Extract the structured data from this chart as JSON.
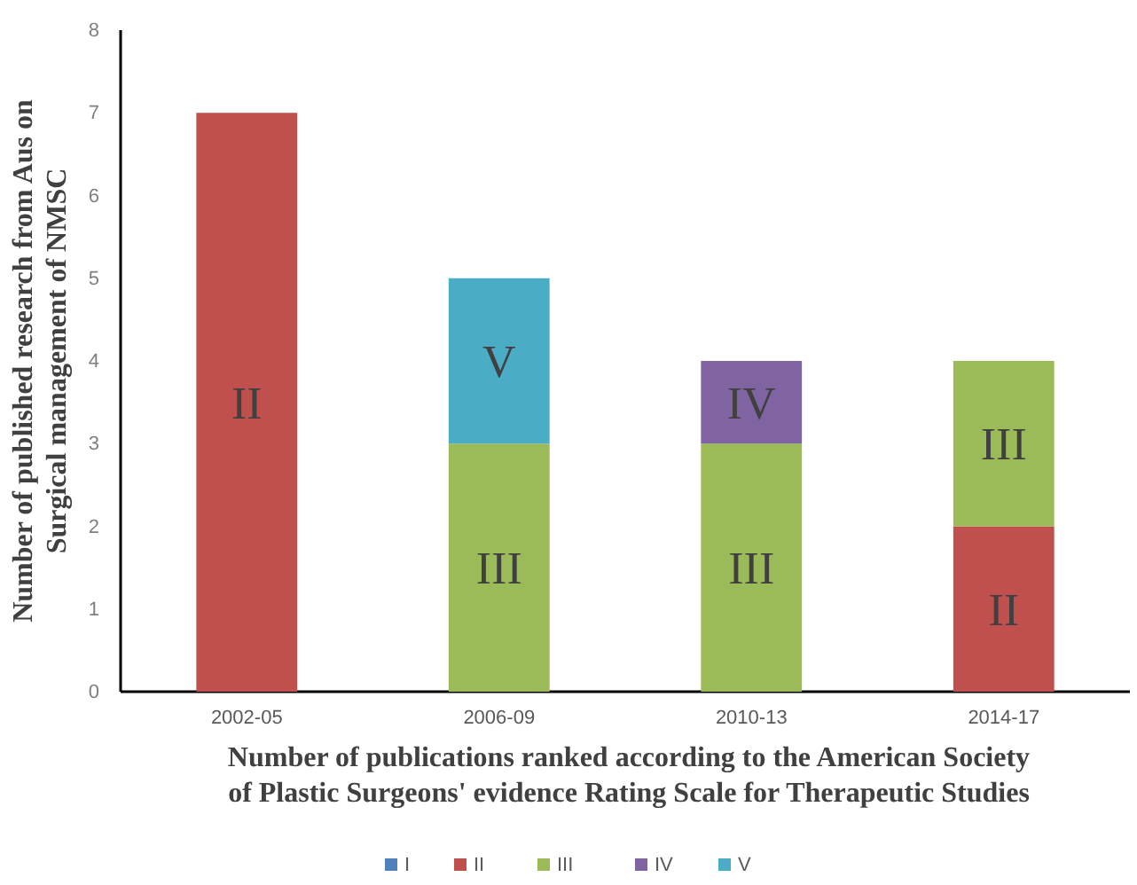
{
  "chart_data": {
    "type": "bar",
    "stacked": true,
    "categories": [
      "2002-05",
      "2006-09",
      "2010-13",
      "2014-17"
    ],
    "series": [
      {
        "name": "I",
        "color": "#4f81bd",
        "values": [
          0,
          0,
          0,
          0
        ]
      },
      {
        "name": "II",
        "color": "#c0504d",
        "values": [
          7,
          0,
          0,
          2
        ]
      },
      {
        "name": "III",
        "color": "#9bbb59",
        "values": [
          0,
          3,
          3,
          2
        ]
      },
      {
        "name": "IV",
        "color": "#8064a2",
        "values": [
          0,
          0,
          1,
          0
        ]
      },
      {
        "name": "V",
        "color": "#4bacc6",
        "values": [
          0,
          2,
          0,
          0
        ]
      }
    ],
    "ylim": [
      0,
      8
    ],
    "yticks": [
      0,
      1,
      2,
      3,
      4,
      5,
      6,
      7,
      8
    ],
    "grid": false,
    "legend": "bottom",
    "xlabel": "Number of publications ranked according to the American Society of Plastic Surgeons' evidence Rating Scale for Therapeutic Studies",
    "ylabel": "Number of published research from Aus on Surgical management of NMSC"
  }
}
